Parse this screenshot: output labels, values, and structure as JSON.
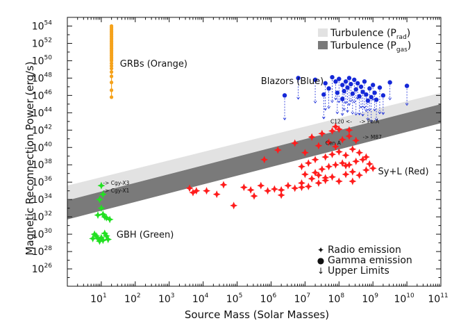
{
  "chart_data": {
    "type": "scatter",
    "xlabel": "Source Mass (Solar Masses)",
    "ylabel": "Magnetic Reconnection Power (erg/s)",
    "x_scale": "log",
    "y_scale": "log",
    "xlim_exp": [
      0,
      11
    ],
    "ylim_exp": [
      24,
      55
    ],
    "x_tick_exps": [
      1,
      2,
      3,
      4,
      5,
      6,
      7,
      8,
      9,
      10,
      11
    ],
    "y_tick_exps": [
      26,
      28,
      30,
      32,
      34,
      36,
      38,
      40,
      42,
      44,
      46,
      48,
      50,
      52,
      54
    ],
    "tick_base": "10",
    "grid": false,
    "colors": {
      "grb": "#f5a21b",
      "blazar": "#1528d8",
      "agn": "#ff1c1c",
      "gbh": "#22e022",
      "band_light": "#e2e2e2",
      "band_dark": "#7a7a7a",
      "label": "#333333"
    },
    "bands": [
      {
        "name": "Turbulence (P_rad)",
        "x_exp": [
          0,
          11
        ],
        "lower_exp": [
          33.9,
          45.0
        ],
        "upper_exp": [
          35.6,
          46.3
        ]
      },
      {
        "name": "Turbulence (P_gas)",
        "x_exp": [
          0,
          11
        ],
        "lower_exp": [
          31.7,
          42.8
        ],
        "upper_exp": [
          33.9,
          45.0
        ]
      }
    ],
    "legend_bands": [
      {
        "main": "Turbulence (P",
        "sub": "rad",
        "close": ")",
        "swatch": "band_light"
      },
      {
        "main": "Turbulence (P",
        "sub": "gas",
        "close": ")",
        "swatch": "band_dark"
      }
    ],
    "legend_markers": [
      {
        "label": "Radio emission",
        "glyph": "✦"
      },
      {
        "label": "Gamma emission",
        "glyph": "●"
      },
      {
        "label": "Upper Limits",
        "glyph": "↓"
      }
    ],
    "group_labels": [
      {
        "text": "GRBs (Orange)",
        "x_exp": 1.55,
        "y_exp": 49.3
      },
      {
        "text": "Blazors (Blue)",
        "x_exp": 5.7,
        "y_exp": 47.3
      },
      {
        "text": "Sy+L (Red)",
        "x_exp": 9.15,
        "y_exp": 36.9
      },
      {
        "text": "GBH (Green)",
        "x_exp": 1.45,
        "y_exp": 29.6
      }
    ],
    "annotations": [
      {
        "text": "-> Cgy-X3",
        "x_exp": 1.05,
        "y_exp": 35.7
      },
      {
        "text": "-> Cgy-X1",
        "x_exp": 1.05,
        "y_exp": 34.8
      },
      {
        "text": "Cen A",
        "x_exp": 7.6,
        "y_exp": 40.3
      },
      {
        "text": "-> M87",
        "x_exp": 8.7,
        "y_exp": 41.0
      },
      {
        "text": "-> PerA",
        "x_exp": 8.6,
        "y_exp": 42.8
      },
      {
        "text": "C120 <-",
        "x_exp": 7.75,
        "y_exp": 42.8
      }
    ],
    "series": [
      {
        "name": "GRBs",
        "marker": "circle",
        "color_key": "grb",
        "points": [
          [
            1.3,
            54
          ],
          [
            1.3,
            53.8
          ],
          [
            1.3,
            53.6
          ],
          [
            1.3,
            53.4
          ],
          [
            1.3,
            53.2
          ],
          [
            1.3,
            53
          ],
          [
            1.3,
            52.8
          ],
          [
            1.3,
            52.6
          ],
          [
            1.3,
            52.4
          ],
          [
            1.3,
            52.2
          ],
          [
            1.3,
            52
          ],
          [
            1.3,
            51.8
          ],
          [
            1.3,
            51.6
          ],
          [
            1.3,
            51.4
          ],
          [
            1.3,
            51.2
          ],
          [
            1.3,
            51
          ],
          [
            1.3,
            50.8
          ],
          [
            1.3,
            50.6
          ],
          [
            1.3,
            50.4
          ],
          [
            1.3,
            50.2
          ],
          [
            1.3,
            50
          ],
          [
            1.3,
            49.7
          ],
          [
            1.3,
            49.4
          ],
          [
            1.3,
            49.1
          ],
          [
            1.3,
            48.7
          ],
          [
            1.3,
            48.2
          ],
          [
            1.3,
            47.5
          ],
          [
            1.3,
            46.6
          ],
          [
            1.3,
            45.8
          ]
        ]
      },
      {
        "name": "Blazars",
        "marker": "circle",
        "color_key": "blazar",
        "upper_limits": true,
        "points": [
          [
            6.4,
            46
          ],
          [
            6.8,
            48
          ],
          [
            7.3,
            47.8
          ],
          [
            7.6,
            47.4
          ],
          [
            7.7,
            46.8
          ],
          [
            7.8,
            48.1
          ],
          [
            7.9,
            47.6
          ],
          [
            8.0,
            47.9
          ],
          [
            8.1,
            47.2
          ],
          [
            8.15,
            46.5
          ],
          [
            8.2,
            47.6
          ],
          [
            8.25,
            46.9
          ],
          [
            8.3,
            48.0
          ],
          [
            8.35,
            47.3
          ],
          [
            8.4,
            46.2
          ],
          [
            8.45,
            47.8
          ],
          [
            8.5,
            46.7
          ],
          [
            8.55,
            47.4
          ],
          [
            8.6,
            45.9
          ],
          [
            8.65,
            47.0
          ],
          [
            8.7,
            46.4
          ],
          [
            8.75,
            47.6
          ],
          [
            8.8,
            46.1
          ],
          [
            8.85,
            45.4
          ],
          [
            8.9,
            46.8
          ],
          [
            8.95,
            45.8
          ],
          [
            9.0,
            47.2
          ],
          [
            9.05,
            46.3
          ],
          [
            9.1,
            45.5
          ],
          [
            9.2,
            46.9
          ],
          [
            9.3,
            46.0
          ],
          [
            9.5,
            47.5
          ],
          [
            10.0,
            47.1
          ],
          [
            7.95,
            46.3
          ],
          [
            8.1,
            45.6
          ],
          [
            7.55,
            46.1
          ]
        ]
      },
      {
        "name": "Sy+L",
        "marker": "star",
        "color_key": "agn",
        "points": [
          [
            4.9,
            33.3
          ],
          [
            5.2,
            35.4
          ],
          [
            5.4,
            35.1
          ],
          [
            5.5,
            34.4
          ],
          [
            5.7,
            35.6
          ],
          [
            5.9,
            35.0
          ],
          [
            6.1,
            35.2
          ],
          [
            6.3,
            35.1
          ],
          [
            6.5,
            35.6
          ],
          [
            6.7,
            35.3
          ],
          [
            6.9,
            35.9
          ],
          [
            7.1,
            35.5
          ],
          [
            6.3,
            34.5
          ],
          [
            6.9,
            35.4
          ],
          [
            7.2,
            36.4
          ],
          [
            7.4,
            35.9
          ],
          [
            7.6,
            36.2
          ],
          [
            7.8,
            36.6
          ],
          [
            8.0,
            36.1
          ],
          [
            8.2,
            36.9
          ],
          [
            8.4,
            37.2
          ],
          [
            8.6,
            36.8
          ],
          [
            8.8,
            37.4
          ],
          [
            9.0,
            37.6
          ],
          [
            7.0,
            36.9
          ],
          [
            7.3,
            37.1
          ],
          [
            7.5,
            37.5
          ],
          [
            7.7,
            37.8
          ],
          [
            7.9,
            38.0
          ],
          [
            8.1,
            38.2
          ],
          [
            8.3,
            38.0
          ],
          [
            8.5,
            38.4
          ],
          [
            8.7,
            38.6
          ],
          [
            8.9,
            38.1
          ],
          [
            7.1,
            38.2
          ],
          [
            7.3,
            38.6
          ],
          [
            7.6,
            38.9
          ],
          [
            7.8,
            39.2
          ],
          [
            8.0,
            39.5
          ],
          [
            8.2,
            39.1
          ],
          [
            8.4,
            39.8
          ],
          [
            8.6,
            39.4
          ],
          [
            7.4,
            40.2
          ],
          [
            7.7,
            40.6
          ],
          [
            7.9,
            40.1
          ],
          [
            8.1,
            40.9
          ],
          [
            8.3,
            41.3
          ],
          [
            8.5,
            40.8
          ],
          [
            7.2,
            41.2
          ],
          [
            7.5,
            41.6
          ],
          [
            7.8,
            41.9
          ],
          [
            8.0,
            42.1
          ],
          [
            7.9,
            42.4
          ],
          [
            8.3,
            42.0
          ],
          [
            6.7,
            40.5
          ],
          [
            6.2,
            39.7
          ],
          [
            7.0,
            39.4
          ],
          [
            6.9,
            37.8
          ],
          [
            7.6,
            36.5
          ],
          [
            8.4,
            36.1
          ],
          [
            5.8,
            38.6
          ],
          [
            3.6,
            35.3
          ],
          [
            3.8,
            35.0
          ],
          [
            4.1,
            35.0
          ],
          [
            4.6,
            35.7
          ],
          [
            4.4,
            34.6
          ],
          [
            3.7,
            34.8
          ],
          [
            8.8,
            38.9
          ],
          [
            8.2,
            37.9
          ],
          [
            7.4,
            36.8
          ]
        ]
      },
      {
        "name": "GBH",
        "marker": "star",
        "color_key": "gbh",
        "points": [
          [
            1.0,
            35.6
          ],
          [
            1.05,
            34.6
          ],
          [
            0.95,
            34.0
          ],
          [
            1.0,
            33.0
          ],
          [
            1.05,
            32.3
          ],
          [
            1.1,
            32.0
          ],
          [
            1.15,
            31.9
          ],
          [
            0.9,
            32.2
          ],
          [
            1.25,
            31.7
          ],
          [
            0.8,
            30.0
          ],
          [
            0.85,
            29.8
          ],
          [
            0.9,
            29.5
          ],
          [
            0.95,
            29.2
          ],
          [
            1.0,
            29.6
          ],
          [
            1.05,
            29.3
          ],
          [
            1.1,
            30.1
          ],
          [
            1.15,
            29.8
          ],
          [
            1.2,
            29.4
          ],
          [
            0.75,
            29.5
          ]
        ]
      }
    ]
  }
}
